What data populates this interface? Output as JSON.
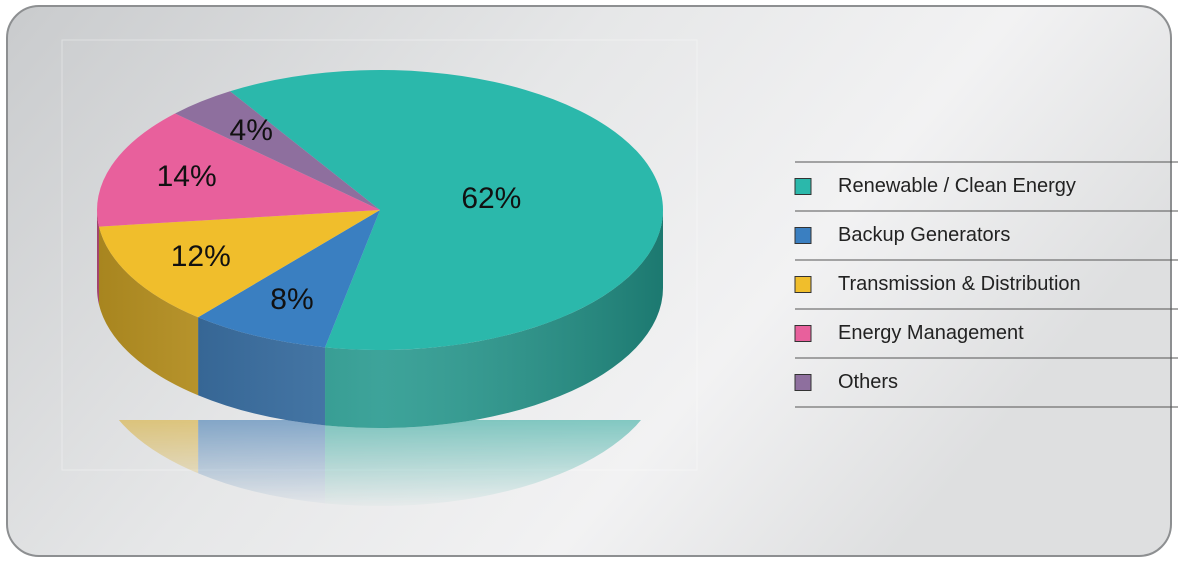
{
  "chart_data": {
    "type": "pie",
    "categories": [
      "Renewable / Clean Energy",
      "Backup Generators",
      "Transmission & Distribution",
      "Energy Management",
      "Others"
    ],
    "values": [
      62,
      8,
      12,
      14,
      4
    ],
    "value_labels": [
      "62%",
      "8%",
      "12%",
      "14%",
      "4%"
    ],
    "colors": [
      "#2bb8ab",
      "#3a7fc1",
      "#f0be2c",
      "#e8609c",
      "#8e6f9e"
    ],
    "legend": "right"
  }
}
